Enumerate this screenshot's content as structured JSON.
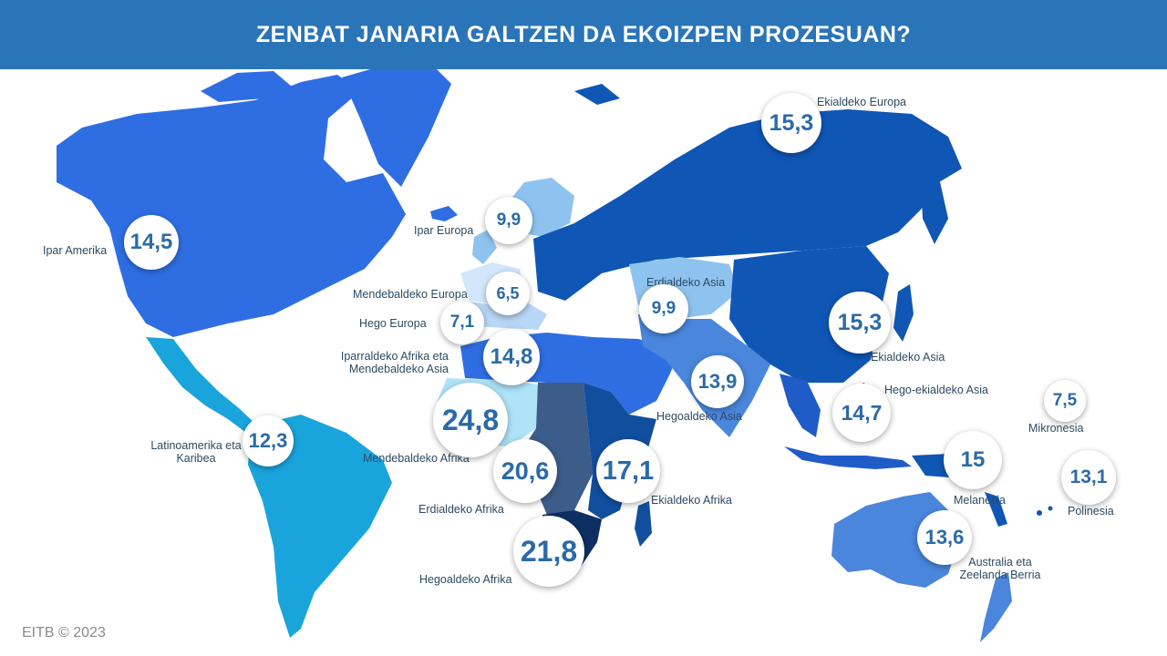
{
  "header": {
    "title": "ZENBAT JANARIA GALTZEN DA EKOIZPEN PROZESUAN?"
  },
  "colors": {
    "header": "#2a74b8",
    "light": "#1aa4dc",
    "medium": "#2d6ee0",
    "darker": "#1f5cc8",
    "darkest": "#0d2f63",
    "number": "#2b6aa6"
  },
  "regions": [
    {
      "name": "Ipar Amerika",
      "value": "14,5"
    },
    {
      "name": "Latinoamerika eta Karibea",
      "value": "12,3"
    },
    {
      "name": "Ipar Europa",
      "value": "9,9"
    },
    {
      "name": "Mendebaldeko Europa",
      "value": "6,5"
    },
    {
      "name": "Hego Europa",
      "value": "7,1"
    },
    {
      "name": "Iparraldeko Afrika eta Mendebaldeko Asia",
      "value": "14,8"
    },
    {
      "name": "Mendebaldeko Afrika",
      "value": "24,8"
    },
    {
      "name": "Erdialdeko Afrika",
      "value": "20,6"
    },
    {
      "name": "Ekialdeko Afrika",
      "value": "17,1"
    },
    {
      "name": "Hegoaldeko Afrika",
      "value": "21,8"
    },
    {
      "name": "Ekialdeko Europa",
      "value": "15,3"
    },
    {
      "name": "Erdialdeko Asia",
      "value": "9,9"
    },
    {
      "name": "Hegoaldeko Asia",
      "value": "13,9"
    },
    {
      "name": "Ekialdeko Asia",
      "value": "15,3"
    },
    {
      "name": "Hego-ekialdeko Asia",
      "value": "14,7"
    },
    {
      "name": "Melanesia",
      "value": "15"
    },
    {
      "name": "Mikronesia",
      "value": "7,5"
    },
    {
      "name": "Polinesia",
      "value": "13,1"
    },
    {
      "name": "Australia eta Zeelanda Berria",
      "value": "13,6"
    }
  ],
  "footer": {
    "credit": "EITB © 2023"
  }
}
